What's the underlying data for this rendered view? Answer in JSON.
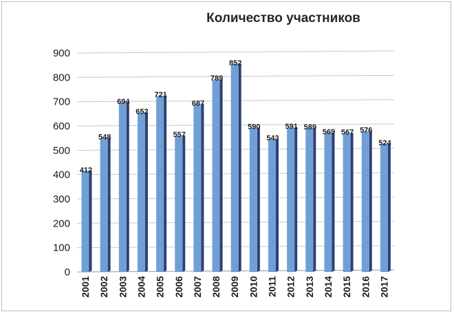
{
  "chart_data": {
    "type": "bar",
    "title": "Количество участников",
    "categories": [
      "2001",
      "2002",
      "2003",
      "2004",
      "2005",
      "2006",
      "2007",
      "2008",
      "2009",
      "2010",
      "2011",
      "2012",
      "2013",
      "2014",
      "2015",
      "2016",
      "2017"
    ],
    "values": [
      412,
      548,
      694,
      652,
      721,
      557,
      687,
      789,
      852,
      590,
      543,
      591,
      589,
      569,
      567,
      576,
      524
    ],
    "data_labels": [
      "412",
      "548",
      "694",
      "652",
      "721",
      "557",
      "687",
      "789",
      "852",
      "590",
      "543",
      "591",
      "589",
      "569",
      "567",
      "576",
      "524"
    ],
    "y_ticks": [
      "0",
      "100",
      "200",
      "300",
      "400",
      "500",
      "600",
      "700",
      "800",
      "900"
    ],
    "ylim": [
      0,
      900
    ],
    "grid": true,
    "legend": "none",
    "colors": {
      "bar_front": "#6f9fd6",
      "bar_side": "#2e3f73",
      "bar_top": "#a9c6ea"
    }
  }
}
